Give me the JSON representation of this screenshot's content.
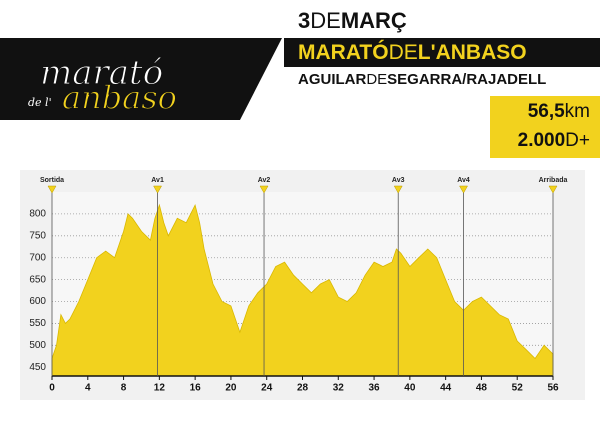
{
  "header": {
    "date": [
      "3",
      "DE",
      "MARÇ"
    ],
    "race": [
      "MARATÓ",
      "DE",
      "L'ANBASO"
    ],
    "place": [
      "AGUILAR",
      "DE",
      "SEGARRA/RAJADELL"
    ],
    "distance": [
      "56,5",
      "km"
    ],
    "climb": [
      "2.000",
      "D+"
    ],
    "logo": [
      "marató",
      "de l'",
      "anbaso"
    ]
  },
  "chart_data": {
    "type": "area",
    "color": "#f2d21e",
    "x": [
      0,
      0.5,
      1,
      1.5,
      2,
      3,
      4,
      5,
      6,
      7,
      8,
      8.5,
      9,
      10,
      11,
      11.5,
      12,
      12.5,
      13,
      14,
      15,
      16,
      16.5,
      17,
      18,
      19,
      20,
      21,
      22,
      23,
      24,
      25,
      26,
      27,
      28,
      29,
      30,
      31,
      32,
      33,
      34,
      35,
      36,
      37,
      38,
      38.5,
      39,
      40,
      41,
      42,
      43,
      44,
      45,
      46,
      47,
      48,
      49,
      50,
      51,
      52,
      53,
      54,
      55,
      56
    ],
    "values": [
      470,
      500,
      570,
      550,
      560,
      600,
      650,
      700,
      715,
      700,
      760,
      800,
      790,
      760,
      740,
      790,
      820,
      780,
      750,
      790,
      780,
      820,
      780,
      720,
      640,
      600,
      590,
      530,
      590,
      620,
      640,
      680,
      690,
      660,
      640,
      620,
      640,
      650,
      610,
      600,
      620,
      660,
      690,
      680,
      690,
      720,
      710,
      680,
      700,
      720,
      700,
      650,
      600,
      580,
      600,
      610,
      590,
      570,
      560,
      510,
      490,
      470,
      500,
      480
    ],
    "xlim": [
      0,
      56
    ],
    "xticks": [
      0,
      4,
      8,
      12,
      16,
      20,
      24,
      28,
      32,
      36,
      40,
      44,
      48,
      52,
      56
    ],
    "ylim": [
      430,
      850
    ],
    "yticks": [
      450,
      500,
      550,
      600,
      650,
      700,
      750,
      800
    ],
    "grid": true,
    "waypoints": [
      {
        "label": "Sortida",
        "x": 0
      },
      {
        "label": "Av1",
        "x": 11.8
      },
      {
        "label": "Av2",
        "x": 23.7
      },
      {
        "label": "Av3",
        "x": 38.7
      },
      {
        "label": "Av4",
        "x": 46
      },
      {
        "label": "Arribada",
        "x": 56
      }
    ]
  }
}
